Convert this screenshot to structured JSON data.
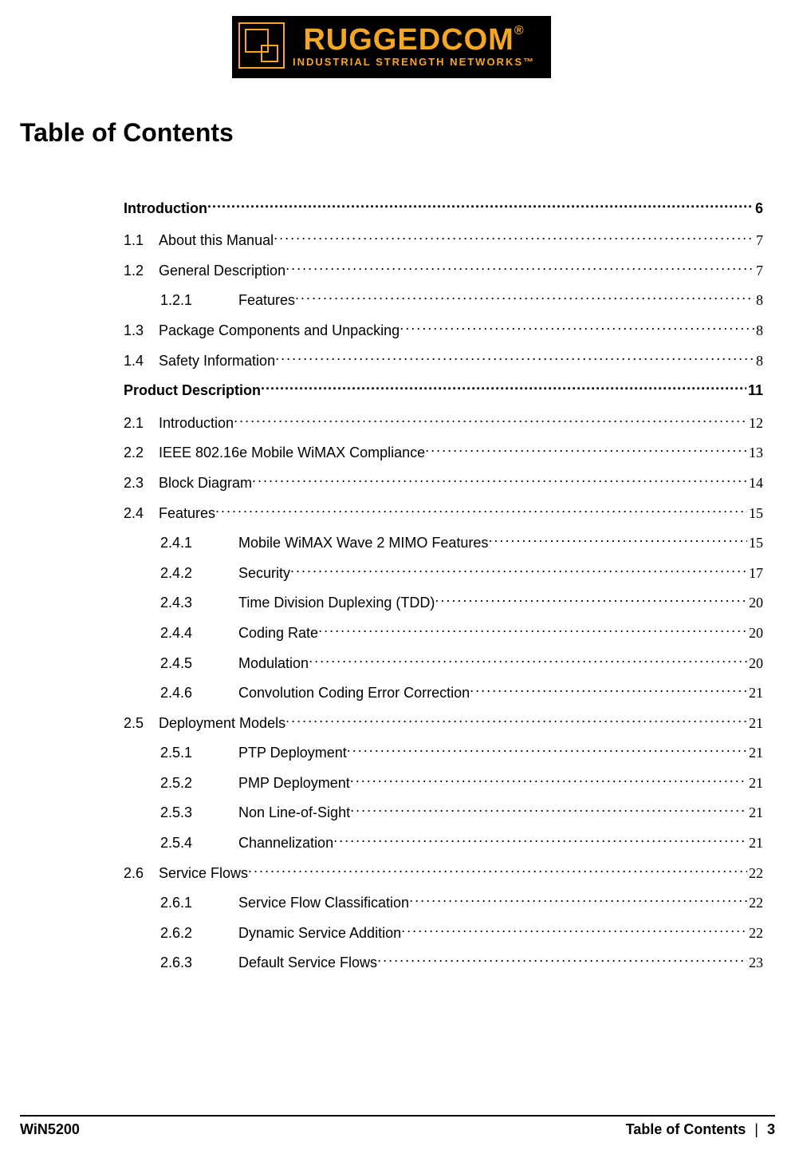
{
  "logo": {
    "main": "RUGGEDCOM",
    "trademark": "®",
    "sub": "INDUSTRIAL STRENGTH NETWORKS™",
    "icon_border_color": "#f5a623",
    "bg_color": "#000000",
    "text_color": "#f5a623"
  },
  "title": "Table of Contents",
  "toc": [
    {
      "level": "chapter",
      "num": "",
      "text": "Introduction",
      "page": "6"
    },
    {
      "level": "section",
      "num": "1.1",
      "text": "About this Manual",
      "page": "7"
    },
    {
      "level": "section",
      "num": "1.2",
      "text": "General Description",
      "page": "7"
    },
    {
      "level": "subsection",
      "num": "1.2.1",
      "text": "Features",
      "page": "8"
    },
    {
      "level": "section",
      "num": "1.3",
      "text": "Package Components and Unpacking",
      "page": "8"
    },
    {
      "level": "section",
      "num": "1.4",
      "text": "Safety Information",
      "page": "8"
    },
    {
      "level": "chapter",
      "num": "",
      "text": "Product Description",
      "page": "11"
    },
    {
      "level": "section",
      "num": "2.1",
      "text": "Introduction",
      "page": "12"
    },
    {
      "level": "section",
      "num": "2.2",
      "text": "IEEE 802.16e Mobile WiMAX Compliance",
      "page": "13"
    },
    {
      "level": "section",
      "num": "2.3",
      "text": "Block Diagram",
      "page": "14"
    },
    {
      "level": "section",
      "num": "2.4",
      "text": "Features",
      "page": "15"
    },
    {
      "level": "subsection",
      "num": "2.4.1",
      "text": "Mobile WiMAX Wave 2 MIMO Features",
      "page": "15"
    },
    {
      "level": "subsection",
      "num": "2.4.2",
      "text": "Security",
      "page": "17"
    },
    {
      "level": "subsection",
      "num": "2.4.3",
      "text": "Time Division Duplexing (TDD)",
      "page": "20"
    },
    {
      "level": "subsection",
      "num": "2.4.4",
      "text": "Coding Rate",
      "page": "20"
    },
    {
      "level": "subsection",
      "num": "2.4.5",
      "text": "Modulation",
      "page": "20"
    },
    {
      "level": "subsection",
      "num": "2.4.6",
      "text": "Convolution Coding Error Correction",
      "page": "21"
    },
    {
      "level": "section",
      "num": "2.5",
      "text": "Deployment Models",
      "page": "21"
    },
    {
      "level": "subsection",
      "num": "2.5.1",
      "text": "PTP Deployment",
      "page": "21"
    },
    {
      "level": "subsection",
      "num": "2.5.2",
      "text": "PMP Deployment",
      "page": "21"
    },
    {
      "level": "subsection",
      "num": "2.5.3",
      "text": "Non Line-of-Sight",
      "page": "21"
    },
    {
      "level": "subsection",
      "num": "2.5.4",
      "text": "Channelization",
      "page": "21"
    },
    {
      "level": "section",
      "num": "2.6",
      "text": "Service Flows",
      "page": "22"
    },
    {
      "level": "subsection",
      "num": "2.6.1",
      "text": "Service Flow Classification",
      "page": "22"
    },
    {
      "level": "subsection",
      "num": "2.6.2",
      "text": "Dynamic Service Addition",
      "page": "22"
    },
    {
      "level": "subsection",
      "num": "2.6.3",
      "text": "Default Service Flows",
      "page": "23"
    }
  ],
  "footer": {
    "left": "WiN5200",
    "right_label": "Table of Contents",
    "right_sep": "|",
    "right_page": "3"
  }
}
